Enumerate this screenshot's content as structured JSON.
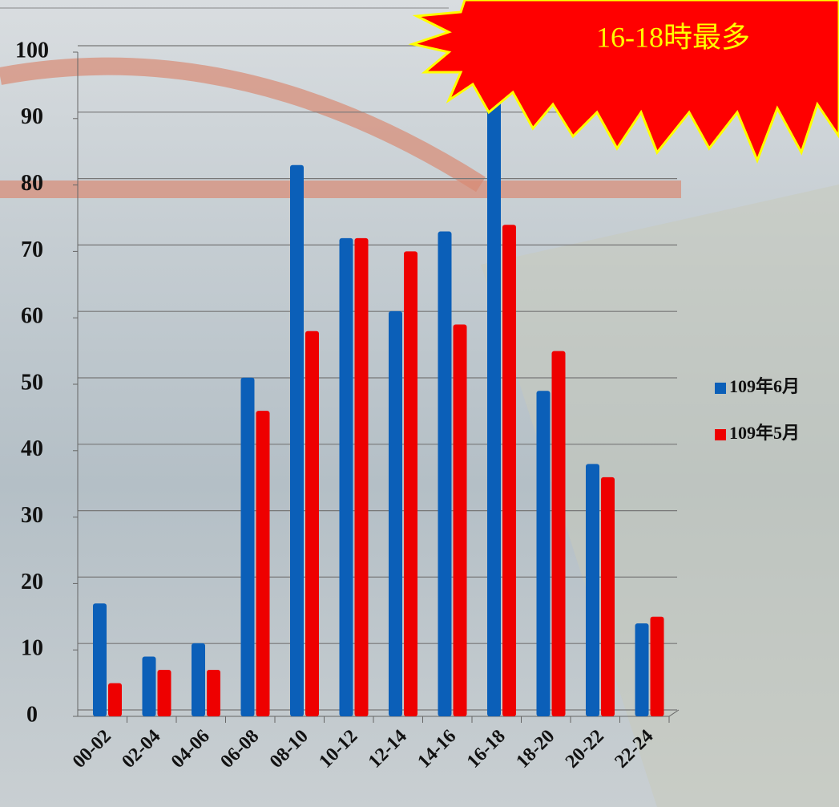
{
  "chart_data": {
    "type": "bar",
    "annotation": "16-18時最多",
    "categories": [
      "00-02",
      "02-04",
      "04-06",
      "06-08",
      "08-10",
      "10-12",
      "12-14",
      "14-16",
      "16-18",
      "18-20",
      "20-22",
      "22-24"
    ],
    "series": [
      {
        "name": "109年6月",
        "color": "#0b5fb8",
        "values": [
          17,
          9,
          11,
          51,
          83,
          72,
          61,
          73,
          96,
          49,
          38,
          14
        ]
      },
      {
        "name": "109年5月",
        "color": "#ee0000",
        "values": [
          5,
          7,
          7,
          46,
          58,
          72,
          70,
          59,
          74,
          55,
          36,
          15
        ]
      }
    ],
    "ylim": [
      0,
      100
    ],
    "yticks": [
      0,
      10,
      20,
      30,
      40,
      50,
      60,
      70,
      80,
      90,
      100
    ],
    "grid": true
  }
}
